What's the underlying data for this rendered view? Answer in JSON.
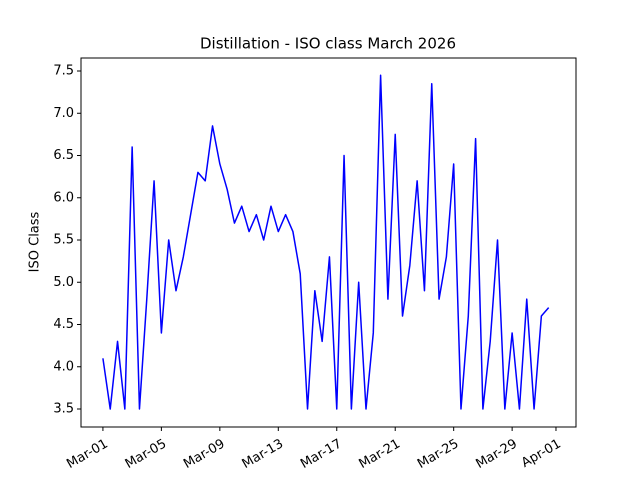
{
  "chart_data": {
    "type": "line",
    "title": "Distillation - ISO class March 2026",
    "y_label": "ISO Class",
    "x": [
      0,
      0.5,
      1,
      1.5,
      2,
      2.5,
      3,
      3.5,
      4,
      4.5,
      5,
      5.5,
      6,
      6.5,
      7,
      7.5,
      8,
      8.5,
      9,
      9.5,
      10,
      10.5,
      11,
      11.5,
      12,
      12.5,
      13,
      13.5,
      14,
      14.5,
      15,
      15.5,
      16,
      16.5,
      17,
      17.5,
      18,
      18.5,
      19,
      19.5,
      20,
      20.5,
      21,
      21.5,
      22,
      22.5,
      23,
      23.5,
      24,
      24.5,
      25,
      25.5,
      26,
      26.5,
      27,
      27.5,
      28,
      28.5,
      29,
      29.5,
      30,
      30.5
    ],
    "values": [
      4.1,
      3.5,
      4.3,
      3.5,
      6.6,
      3.5,
      4.8,
      6.2,
      4.4,
      5.5,
      4.9,
      5.3,
      5.8,
      6.3,
      6.2,
      6.85,
      6.4,
      6.1,
      5.7,
      5.9,
      5.6,
      5.8,
      5.5,
      5.9,
      5.6,
      5.8,
      5.6,
      5.1,
      3.5,
      4.9,
      4.3,
      5.3,
      3.5,
      6.5,
      3.5,
      5.0,
      3.5,
      4.4,
      7.45,
      4.8,
      6.75,
      4.6,
      5.2,
      6.2,
      4.9,
      7.35,
      4.8,
      5.3,
      6.4,
      3.5,
      4.6,
      6.7,
      3.5,
      4.3,
      5.5,
      3.5,
      4.4,
      3.5,
      4.8,
      3.5,
      4.6,
      4.7
    ],
    "color": "#0000ff",
    "xlim": [
      -1.5,
      32.37
    ],
    "xticks": [
      {
        "value": 0,
        "label": "Mar-01"
      },
      {
        "value": 4,
        "label": "Mar-05"
      },
      {
        "value": 8,
        "label": "Mar-09"
      },
      {
        "value": 12,
        "label": "Mar-13"
      },
      {
        "value": 16,
        "label": "Mar-17"
      },
      {
        "value": 20,
        "label": "Mar-21"
      },
      {
        "value": 24,
        "label": "Mar-25"
      },
      {
        "value": 28,
        "label": "Mar-29"
      },
      {
        "value": 31,
        "label": "Apr-01"
      }
    ],
    "ylim": [
      3.287,
      7.654
    ],
    "yticks": [
      3.5,
      {
        "value": 4,
        "label": "4.0"
      },
      4.5,
      {
        "value": 5,
        "label": "5.0"
      },
      5.5,
      {
        "value": 6,
        "label": "6.0"
      },
      6.5,
      {
        "value": 7,
        "label": "7.0"
      },
      7.5
    ],
    "grid": false
  }
}
